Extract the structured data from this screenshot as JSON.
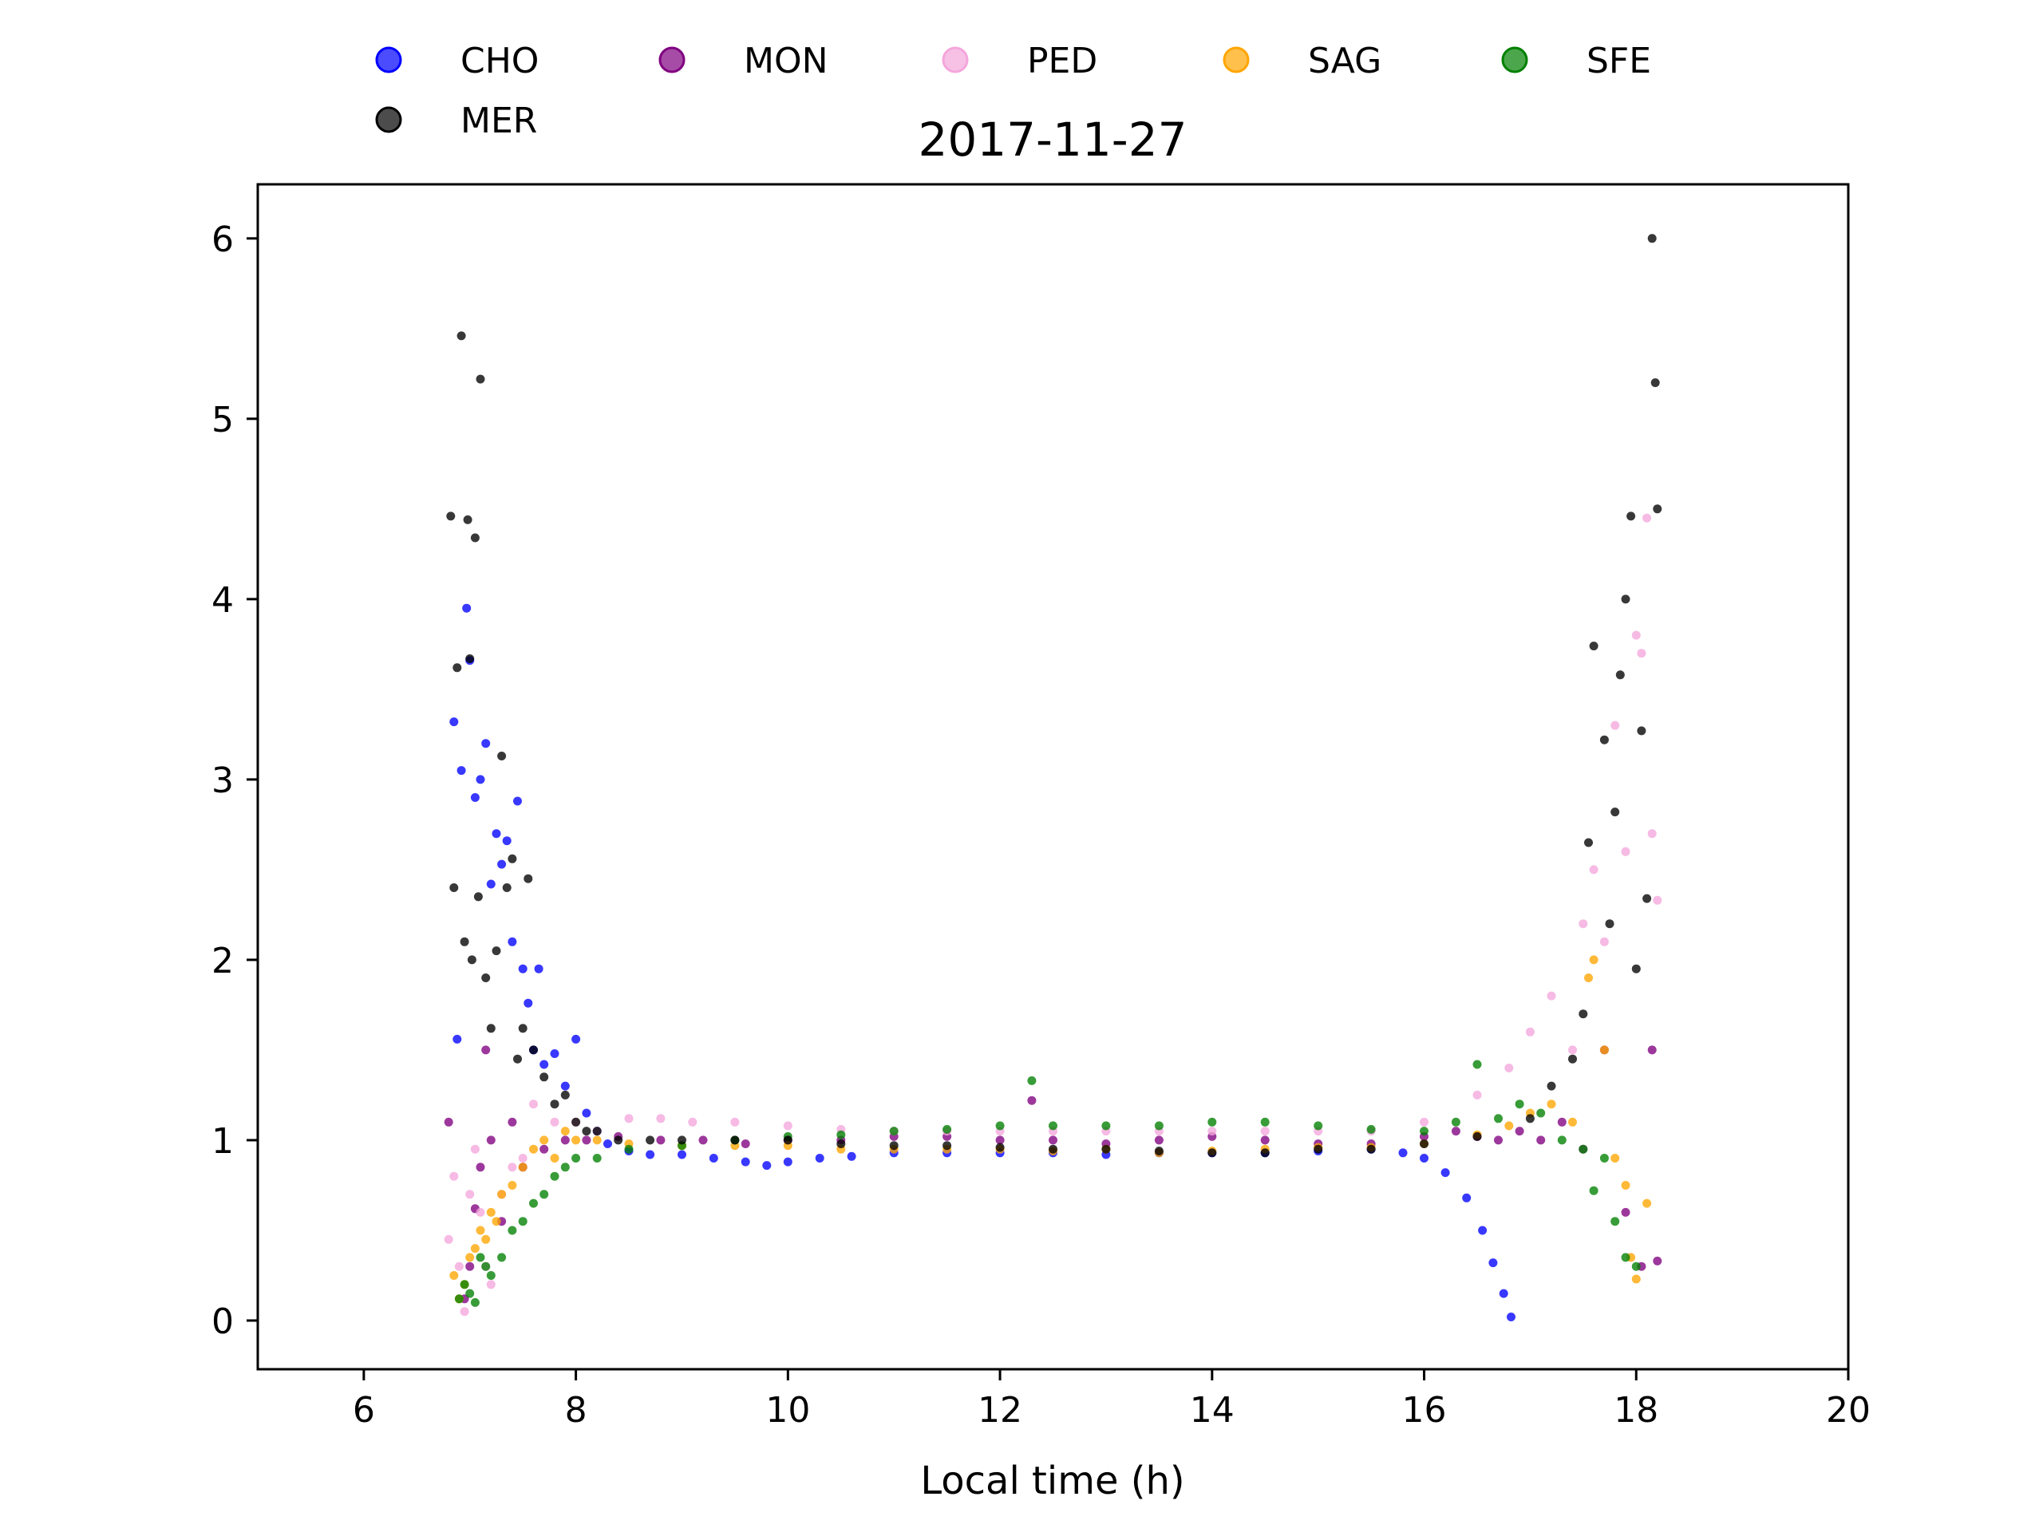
{
  "chart_data": {
    "type": "scatter",
    "title": "2017-11-27",
    "xlabel": "Local time (h)",
    "ylabel": "",
    "xlim": [
      5,
      20
    ],
    "ylim": [
      -0.27,
      6.3
    ],
    "x_ticks": [
      "6",
      "8",
      "10",
      "12",
      "14",
      "16",
      "18",
      "20"
    ],
    "y_ticks": [
      "0",
      "1",
      "2",
      "3",
      "4",
      "5",
      "6"
    ],
    "grid": false,
    "legend_position": "top, outside plot",
    "series": [
      {
        "name": "CHO",
        "color": "#0000ff",
        "x": [
          6.85,
          6.88,
          6.92,
          6.97,
          7.0,
          7.05,
          7.1,
          7.15,
          7.2,
          7.25,
          7.3,
          7.35,
          7.4,
          7.45,
          7.5,
          7.55,
          7.6,
          7.65,
          7.7,
          7.8,
          7.9,
          8.0,
          8.1,
          8.2,
          8.3,
          8.5,
          8.7,
          9.0,
          9.3,
          9.6,
          9.8,
          10.0,
          10.3,
          10.6,
          11.0,
          11.5,
          12.0,
          12.5,
          13.0,
          13.5,
          14.0,
          14.5,
          15.0,
          15.5,
          15.8,
          16.0,
          16.2,
          16.4,
          16.55,
          16.65,
          16.75,
          16.82
        ],
        "y": [
          3.32,
          1.56,
          3.05,
          3.95,
          3.66,
          2.9,
          3.0,
          3.2,
          2.42,
          2.7,
          2.53,
          2.66,
          2.1,
          2.88,
          1.95,
          1.76,
          1.5,
          1.95,
          1.42,
          1.48,
          1.3,
          1.56,
          1.15,
          1.05,
          0.98,
          0.94,
          0.92,
          0.92,
          0.9,
          0.88,
          0.86,
          0.88,
          0.9,
          0.91,
          0.93,
          0.93,
          0.93,
          0.93,
          0.92,
          0.93,
          0.93,
          0.93,
          0.94,
          0.95,
          0.93,
          0.9,
          0.82,
          0.68,
          0.5,
          0.32,
          0.15,
          0.02
        ]
      },
      {
        "name": "MON",
        "color": "#800080",
        "x": [
          6.8,
          6.95,
          7.0,
          7.05,
          7.1,
          7.15,
          7.2,
          7.3,
          7.4,
          7.5,
          7.7,
          7.9,
          8.1,
          8.4,
          8.8,
          9.2,
          9.6,
          10.0,
          10.5,
          11.0,
          11.5,
          12.0,
          12.3,
          12.5,
          13.0,
          13.5,
          14.0,
          14.5,
          15.0,
          15.5,
          16.0,
          16.3,
          16.5,
          16.7,
          16.9,
          17.1,
          17.3,
          17.5,
          17.7,
          17.9,
          18.05,
          18.15,
          18.2
        ],
        "y": [
          1.1,
          0.12,
          0.3,
          0.62,
          0.85,
          1.5,
          1.0,
          0.55,
          1.1,
          0.85,
          0.95,
          1.0,
          1.0,
          1.02,
          1.0,
          1.0,
          0.98,
          1.0,
          1.0,
          1.02,
          1.02,
          1.0,
          1.22,
          1.0,
          0.98,
          1.0,
          1.02,
          1.0,
          0.98,
          0.98,
          1.02,
          1.05,
          1.02,
          1.0,
          1.05,
          1.0,
          1.1,
          0.95,
          1.5,
          0.6,
          0.3,
          1.5,
          0.33
        ]
      },
      {
        "name": "PED",
        "color": "#f4a6dc",
        "x": [
          6.8,
          6.85,
          6.9,
          6.95,
          7.0,
          7.05,
          7.1,
          7.15,
          7.2,
          7.3,
          7.4,
          7.5,
          7.6,
          7.8,
          8.0,
          8.2,
          8.5,
          8.8,
          9.1,
          9.5,
          10.0,
          10.5,
          11.0,
          11.5,
          12.0,
          12.5,
          13.0,
          13.5,
          14.0,
          14.5,
          15.0,
          15.5,
          16.0,
          16.5,
          16.8,
          17.0,
          17.2,
          17.4,
          17.5,
          17.6,
          17.7,
          17.8,
          17.9,
          18.0,
          18.05,
          18.1,
          18.15,
          18.2
        ],
        "y": [
          0.45,
          0.8,
          0.3,
          0.05,
          0.7,
          0.95,
          0.6,
          0.3,
          0.2,
          0.7,
          0.85,
          0.9,
          1.2,
          1.1,
          1.1,
          1.05,
          1.12,
          1.12,
          1.1,
          1.1,
          1.08,
          1.06,
          1.05,
          1.05,
          1.05,
          1.05,
          1.05,
          1.05,
          1.05,
          1.05,
          1.05,
          1.05,
          1.1,
          1.25,
          1.4,
          1.6,
          1.8,
          1.5,
          2.2,
          2.5,
          2.1,
          3.3,
          2.6,
          3.8,
          3.7,
          4.45,
          2.7,
          2.33
        ]
      },
      {
        "name": "SAG",
        "color": "#ffa500",
        "x": [
          6.85,
          6.9,
          6.95,
          7.0,
          7.05,
          7.1,
          7.15,
          7.2,
          7.25,
          7.3,
          7.4,
          7.5,
          7.6,
          7.7,
          7.8,
          7.9,
          8.0,
          8.2,
          8.5,
          9.0,
          9.5,
          10.0,
          10.5,
          11.0,
          11.5,
          12.0,
          12.5,
          13.0,
          13.5,
          14.0,
          14.5,
          15.0,
          15.5,
          16.0,
          16.5,
          16.8,
          17.0,
          17.2,
          17.4,
          17.55,
          17.6,
          17.7,
          17.8,
          17.9,
          17.95,
          18.0,
          18.1
        ],
        "y": [
          0.25,
          0.12,
          0.2,
          0.35,
          0.4,
          0.5,
          0.45,
          0.6,
          0.55,
          0.7,
          0.75,
          0.85,
          0.95,
          1.0,
          0.9,
          1.05,
          1.0,
          1.0,
          0.98,
          0.97,
          0.97,
          0.97,
          0.95,
          0.95,
          0.95,
          0.95,
          0.94,
          0.95,
          0.93,
          0.94,
          0.95,
          0.96,
          0.96,
          0.98,
          1.03,
          1.08,
          1.15,
          1.2,
          1.1,
          1.9,
          2.0,
          1.5,
          0.9,
          0.75,
          0.35,
          0.23,
          0.65
        ]
      },
      {
        "name": "SFE",
        "color": "#008000",
        "x": [
          6.9,
          6.95,
          7.0,
          7.05,
          7.1,
          7.15,
          7.2,
          7.3,
          7.4,
          7.5,
          7.6,
          7.7,
          7.8,
          7.9,
          8.0,
          8.2,
          8.5,
          9.0,
          9.5,
          10.0,
          10.5,
          11.0,
          11.5,
          12.0,
          12.3,
          12.5,
          13.0,
          13.5,
          14.0,
          14.5,
          15.0,
          15.5,
          16.0,
          16.3,
          16.5,
          16.7,
          16.9,
          17.1,
          17.3,
          17.5,
          17.6,
          17.7,
          17.8,
          17.9,
          18.0
        ],
        "y": [
          0.12,
          0.2,
          0.15,
          0.1,
          0.35,
          0.3,
          0.25,
          0.35,
          0.5,
          0.55,
          0.65,
          0.7,
          0.8,
          0.85,
          0.9,
          0.9,
          0.95,
          0.97,
          1.0,
          1.02,
          1.03,
          1.05,
          1.06,
          1.08,
          1.33,
          1.08,
          1.08,
          1.08,
          1.1,
          1.1,
          1.08,
          1.06,
          1.05,
          1.1,
          1.42,
          1.12,
          1.2,
          1.15,
          1.0,
          0.95,
          0.72,
          0.9,
          0.55,
          0.35,
          0.3
        ]
      },
      {
        "name": "MER",
        "color": "#000000",
        "x": [
          6.82,
          6.85,
          6.88,
          6.92,
          6.95,
          6.98,
          7.0,
          7.02,
          7.05,
          7.08,
          7.1,
          7.15,
          7.2,
          7.25,
          7.3,
          7.35,
          7.4,
          7.45,
          7.5,
          7.55,
          7.6,
          7.7,
          7.8,
          7.9,
          8.0,
          8.1,
          8.2,
          8.4,
          8.7,
          9.0,
          9.5,
          10.0,
          10.5,
          11.0,
          11.5,
          12.0,
          12.5,
          13.0,
          13.5,
          14.0,
          14.5,
          15.0,
          15.5,
          16.0,
          16.5,
          17.0,
          17.2,
          17.4,
          17.5,
          17.55,
          17.6,
          17.7,
          17.75,
          17.8,
          17.85,
          17.9,
          17.95,
          18.0,
          18.05,
          18.1,
          18.15,
          18.18,
          18.2
        ],
        "y": [
          4.46,
          2.4,
          3.62,
          5.46,
          2.1,
          4.44,
          3.67,
          2.0,
          4.34,
          2.35,
          5.22,
          1.9,
          1.62,
          2.05,
          3.13,
          2.4,
          2.56,
          1.45,
          1.62,
          2.45,
          1.5,
          1.35,
          1.2,
          1.25,
          1.1,
          1.05,
          1.05,
          1.0,
          1.0,
          1.0,
          1.0,
          1.0,
          0.98,
          0.97,
          0.97,
          0.96,
          0.95,
          0.95,
          0.94,
          0.93,
          0.93,
          0.95,
          0.95,
          0.98,
          1.02,
          1.12,
          1.3,
          1.45,
          1.7,
          2.65,
          3.74,
          3.22,
          2.2,
          2.82,
          3.58,
          4.0,
          4.46,
          1.95,
          3.27,
          2.34,
          6.0,
          5.2,
          4.5
        ]
      }
    ]
  }
}
